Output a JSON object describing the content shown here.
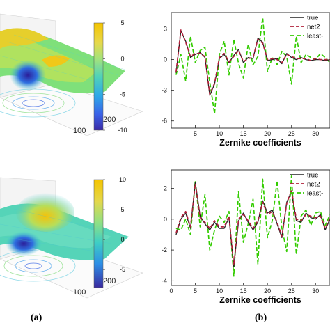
{
  "panel_labels": [
    "(a)",
    "(b)"
  ],
  "chart_data": [
    {
      "type": "surface",
      "axis_tick_labels": [
        "100",
        "200"
      ],
      "colorbar": {
        "ticks": [
          "5",
          "0",
          "-5",
          "-10"
        ],
        "range": [
          -10,
          5
        ]
      }
    },
    {
      "type": "line",
      "xlabel": "Zernike coefficients",
      "x_ticks": [
        "5",
        "10",
        "15",
        "20",
        "25",
        "30"
      ],
      "y_ticks": [
        "3",
        "0",
        "-3",
        "-6"
      ],
      "xlim": [
        0,
        33
      ],
      "ylim": [
        -6.7,
        4.6
      ],
      "x": [
        1,
        2,
        3,
        4,
        5,
        6,
        7,
        8,
        9,
        10,
        11,
        12,
        13,
        14,
        15,
        16,
        17,
        18,
        19,
        20,
        21,
        22,
        23,
        24,
        25,
        26,
        27,
        28,
        29,
        30,
        31,
        32,
        33
      ],
      "series": [
        {
          "name": "true",
          "color": "#222222",
          "dash": "solid",
          "values": [
            -1.3,
            2.8,
            1.8,
            0.2,
            0.5,
            0.7,
            0.2,
            -3.5,
            -2.4,
            0.1,
            0.5,
            -0.3,
            0.4,
            1.0,
            -0.3,
            0.2,
            0.1,
            2.1,
            1.7,
            -0.1,
            0.0,
            0.1,
            -0.4,
            0.6,
            0.2,
            0.0,
            0.2,
            0.0,
            -0.1,
            0.0,
            0.0,
            -0.1,
            0.0
          ]
        },
        {
          "name": "net2",
          "color": "#b0203a",
          "dash": "5,3",
          "values": [
            -1.2,
            2.9,
            1.7,
            0.3,
            0.6,
            0.6,
            0.3,
            -3.4,
            -2.3,
            0.2,
            0.6,
            -0.2,
            0.3,
            0.9,
            -0.2,
            0.1,
            0.2,
            2.0,
            1.6,
            0.0,
            0.1,
            0.0,
            -0.3,
            0.5,
            0.3,
            0.1,
            0.1,
            0.1,
            -0.1,
            0.1,
            0.0,
            0.0,
            0.0
          ]
        },
        {
          "name": "least-",
          "color": "#33cc00",
          "dash": "6,3",
          "values": [
            -1.5,
            0.5,
            -2.1,
            2.3,
            -0.3,
            0.9,
            1.2,
            -2.2,
            -5.3,
            0.5,
            1.8,
            -1.5,
            2.0,
            -0.4,
            -1.8,
            1.5,
            -0.5,
            0.3,
            4.1,
            -1.2,
            0.2,
            -0.5,
            0.8,
            0.3,
            -2.4,
            2.3,
            -0.3,
            0.5,
            0.2,
            0.0,
            0.6,
            0.2,
            -0.3
          ]
        }
      ]
    },
    {
      "type": "surface",
      "axis_tick_labels": [
        "100",
        "200"
      ],
      "colorbar": {
        "ticks": [
          "10",
          "5",
          "0",
          "-5"
        ],
        "range": [
          -8,
          10
        ]
      }
    },
    {
      "type": "line",
      "xlabel": "Zernike coefficients",
      "x_ticks": [
        "0",
        "5",
        "10",
        "15",
        "20",
        "25",
        "30"
      ],
      "y_ticks": [
        "2",
        "0",
        "-2",
        "-4"
      ],
      "xlim": [
        0,
        33
      ],
      "ylim": [
        -4.3,
        3.2
      ],
      "x": [
        1,
        2,
        3,
        4,
        5,
        6,
        7,
        8,
        9,
        10,
        11,
        12,
        13,
        14,
        15,
        16,
        17,
        18,
        19,
        20,
        21,
        22,
        23,
        24,
        25,
        26,
        27,
        28,
        29,
        30,
        31,
        32,
        33
      ],
      "series": [
        {
          "name": "true",
          "color": "#222222",
          "dash": "solid",
          "values": [
            -1.0,
            0.0,
            0.4,
            -0.6,
            2.4,
            0.2,
            -0.3,
            -0.7,
            -0.2,
            -0.6,
            -0.6,
            0.1,
            -3.1,
            -0.1,
            0.4,
            -0.2,
            -0.7,
            -0.2,
            1.2,
            0.4,
            0.6,
            -0.3,
            -1.2,
            1.1,
            1.8,
            -0.1,
            -0.2,
            0.4,
            0.1,
            0.0,
            0.3,
            -0.7,
            0.0
          ]
        },
        {
          "name": "net2",
          "color": "#b0203a",
          "dash": "5,3",
          "values": [
            -0.9,
            0.1,
            0.5,
            -0.5,
            2.3,
            0.1,
            -0.2,
            -0.6,
            -0.1,
            -0.5,
            -0.5,
            0.2,
            -3.0,
            0.0,
            0.3,
            -0.1,
            -0.6,
            -0.1,
            1.1,
            0.3,
            0.5,
            -0.2,
            -1.1,
            1.0,
            1.9,
            0.0,
            -0.1,
            0.3,
            0.2,
            0.1,
            0.2,
            -0.6,
            0.1
          ]
        },
        {
          "name": "least-",
          "color": "#33cc00",
          "dash": "6,3",
          "values": [
            -0.6,
            -0.7,
            0.0,
            -1.0,
            2.5,
            -0.5,
            1.6,
            -2.0,
            -0.7,
            0.2,
            -0.2,
            0.5,
            -3.7,
            1.8,
            -1.5,
            -0.3,
            1.3,
            -2.9,
            2.6,
            -1.2,
            -0.1,
            2.5,
            -0.6,
            -2.1,
            2.8,
            -2.3,
            0.2,
            0.6,
            -0.4,
            0.4,
            0.5,
            -0.4,
            0.3
          ]
        }
      ]
    }
  ]
}
